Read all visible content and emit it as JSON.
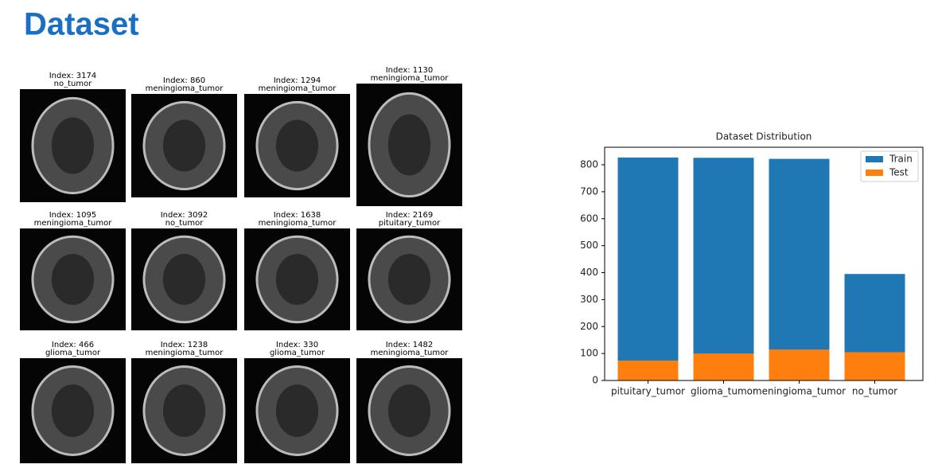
{
  "title": "Dataset",
  "images": [
    {
      "index": "Index: 3174",
      "label": "no_tumor"
    },
    {
      "index": "Index: 860",
      "label": "meningioma_tumor"
    },
    {
      "index": "Index: 1294",
      "label": "meningioma_tumor"
    },
    {
      "index": "Index: 1130",
      "label": "meningioma_tumor"
    },
    {
      "index": "Index: 1095",
      "label": "meningioma_tumor"
    },
    {
      "index": "Index: 3092",
      "label": "no_tumor"
    },
    {
      "index": "Index: 1638",
      "label": "meningioma_tumor"
    },
    {
      "index": "Index: 2169",
      "label": "pituitary_tumor"
    },
    {
      "index": "Index: 466",
      "label": "glioma_tumor"
    },
    {
      "index": "Index: 1238",
      "label": "meningioma_tumor"
    },
    {
      "index": "Index: 330",
      "label": "glioma_tumor"
    },
    {
      "index": "Index: 1482",
      "label": "meningioma_tumor"
    }
  ],
  "chart_data": {
    "type": "bar",
    "title": "Dataset Distribution",
    "categories": [
      "pituitary_tumor",
      "glioma_tumor",
      "meningioma_tumor",
      "no_tumor"
    ],
    "series": [
      {
        "name": "Train",
        "color": "#1f77b4",
        "values": [
          827,
          826,
          822,
          395
        ]
      },
      {
        "name": "Test",
        "color": "#ff7f0e",
        "values": [
          74,
          100,
          115,
          105
        ]
      }
    ],
    "ylim": [
      0,
      865
    ],
    "yticks": [
      0,
      100,
      200,
      300,
      400,
      500,
      600,
      700,
      800
    ],
    "legend": "upper right"
  }
}
